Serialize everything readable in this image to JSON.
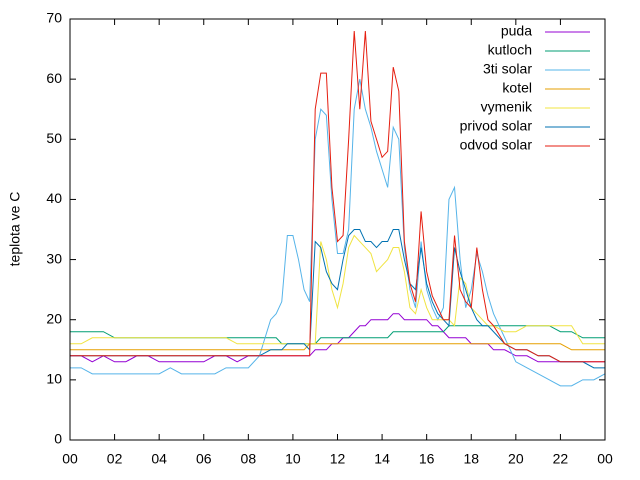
{
  "chart_data": {
    "type": "line",
    "ylabel": "teplota ve C",
    "x": [
      0,
      0.5,
      1,
      1.5,
      2,
      2.5,
      3,
      3.5,
      4,
      4.5,
      5,
      5.5,
      6,
      6.5,
      7,
      7.5,
      8,
      8.5,
      9,
      9.25,
      9.5,
      9.75,
      10,
      10.25,
      10.5,
      10.75,
      11,
      11.25,
      11.5,
      11.75,
      12,
      12.25,
      12.5,
      12.75,
      13,
      13.25,
      13.5,
      13.75,
      14,
      14.25,
      14.5,
      14.75,
      15,
      15.25,
      15.5,
      15.75,
      16,
      16.25,
      16.5,
      16.75,
      17,
      17.25,
      17.5,
      17.75,
      18,
      18.25,
      18.5,
      18.75,
      19,
      19.5,
      20,
      20.5,
      21,
      21.5,
      22,
      22.5,
      23,
      23.5,
      24
    ],
    "xlim": [
      0,
      24
    ],
    "xticks": [
      {
        "value": 0,
        "label": "00"
      },
      {
        "value": 2,
        "label": "02"
      },
      {
        "value": 4,
        "label": "04"
      },
      {
        "value": 6,
        "label": "06"
      },
      {
        "value": 8,
        "label": "08"
      },
      10,
      12,
      14,
      16,
      18,
      20,
      22,
      {
        "value": 24,
        "label": "00"
      }
    ],
    "ylim": [
      0,
      70
    ],
    "yticks": [
      0,
      10,
      20,
      30,
      40,
      50,
      60,
      70
    ],
    "legend": "top-right",
    "series": [
      {
        "name": "puda",
        "color": "#9400d3",
        "values": [
          14,
          14,
          13,
          14,
          13,
          13,
          14,
          14,
          13,
          13,
          13,
          13,
          13,
          14,
          14,
          13,
          14,
          14,
          14,
          14,
          14,
          14,
          14,
          14,
          14,
          14,
          15,
          15,
          15,
          16,
          16,
          17,
          17,
          18,
          19,
          19,
          20,
          20,
          20,
          20,
          21,
          21,
          20,
          20,
          20,
          20,
          20,
          19,
          19,
          18,
          17,
          17,
          17,
          17,
          16,
          16,
          16,
          16,
          15,
          15,
          14,
          14,
          13,
          13,
          13,
          13,
          13,
          13,
          13
        ]
      },
      {
        "name": "kutloch",
        "color": "#009e73",
        "values": [
          18,
          18,
          18,
          18,
          17,
          17,
          17,
          17,
          17,
          17,
          17,
          17,
          17,
          17,
          17,
          17,
          17,
          17,
          17,
          17,
          16,
          16,
          16,
          16,
          16,
          16,
          16,
          17,
          17,
          17,
          17,
          17,
          17,
          17,
          17,
          17,
          17,
          17,
          17,
          17,
          18,
          18,
          18,
          18,
          18,
          18,
          18,
          18,
          18,
          18,
          19,
          19,
          19,
          19,
          19,
          19,
          19,
          19,
          19,
          19,
          19,
          19,
          19,
          19,
          18,
          18,
          17,
          17,
          17
        ]
      },
      {
        "name": "3ti solar",
        "color": "#56b4e9",
        "values": [
          12,
          12,
          11,
          11,
          11,
          11,
          11,
          11,
          11,
          12,
          11,
          11,
          11,
          11,
          12,
          12,
          12,
          14,
          20,
          21,
          23,
          34,
          34,
          30,
          25,
          23,
          50,
          55,
          54,
          40,
          31,
          31,
          35,
          55,
          60,
          55,
          52,
          48,
          45,
          42,
          52,
          50,
          32,
          25,
          22,
          33,
          25,
          22,
          20,
          22,
          40,
          42,
          30,
          22,
          25,
          31,
          28,
          24,
          21,
          17,
          13,
          12,
          11,
          10,
          9,
          9,
          10,
          10,
          11
        ]
      },
      {
        "name": "kotel",
        "color": "#e69f00",
        "values": [
          15,
          15,
          15,
          15,
          15,
          15,
          15,
          15,
          15,
          15,
          15,
          15,
          15,
          15,
          15,
          15,
          15,
          15,
          15,
          15,
          15,
          15,
          15,
          15,
          15,
          16,
          16,
          16,
          16,
          16,
          16,
          16,
          16,
          16,
          16,
          16,
          16,
          16,
          16,
          16,
          16,
          16,
          16,
          16,
          16,
          16,
          16,
          16,
          16,
          16,
          16,
          16,
          16,
          16,
          16,
          16,
          16,
          16,
          16,
          16,
          16,
          16,
          16,
          16,
          16,
          15,
          15,
          15,
          15
        ]
      },
      {
        "name": "vymenik",
        "color": "#f0e442",
        "values": [
          16,
          16,
          17,
          17,
          17,
          17,
          17,
          17,
          17,
          17,
          17,
          17,
          17,
          17,
          17,
          16,
          16,
          16,
          16,
          16,
          16,
          16,
          16,
          16,
          16,
          16,
          16,
          33,
          30,
          25,
          22,
          26,
          32,
          34,
          33,
          32,
          31,
          28,
          29,
          30,
          32,
          32,
          28,
          22,
          21,
          25,
          22,
          20,
          20,
          20,
          20,
          19,
          27,
          26,
          22,
          21,
          20,
          19,
          19,
          18,
          18,
          19,
          19,
          19,
          19,
          19,
          16,
          16,
          16
        ]
      },
      {
        "name": "privod solar",
        "color": "#0072b2",
        "values": [
          14,
          14,
          14,
          14,
          14,
          14,
          14,
          14,
          14,
          14,
          14,
          14,
          14,
          14,
          14,
          14,
          14,
          14,
          15,
          15,
          15,
          16,
          16,
          16,
          16,
          15,
          33,
          32,
          28,
          26,
          25,
          30,
          34,
          35,
          35,
          33,
          33,
          32,
          33,
          33,
          35,
          35,
          30,
          26,
          25,
          32,
          26,
          23,
          21,
          20,
          19,
          32,
          28,
          25,
          22,
          20,
          19,
          19,
          18,
          16,
          15,
          15,
          14,
          14,
          13,
          13,
          13,
          12,
          12
        ]
      },
      {
        "name": "odvod solar",
        "color": "#e51e10",
        "values": [
          14,
          14,
          14,
          14,
          14,
          14,
          14,
          14,
          14,
          14,
          14,
          14,
          14,
          14,
          14,
          14,
          14,
          14,
          14,
          14,
          14,
          14,
          14,
          14,
          14,
          14,
          55,
          61,
          61,
          42,
          33,
          34,
          50,
          68,
          55,
          68,
          53,
          50,
          47,
          48,
          62,
          58,
          33,
          26,
          23,
          38,
          28,
          24,
          22,
          20,
          20,
          34,
          25,
          23,
          22,
          32,
          25,
          20,
          19,
          16,
          15,
          15,
          14,
          14,
          13,
          13,
          13,
          13,
          13
        ]
      }
    ]
  }
}
